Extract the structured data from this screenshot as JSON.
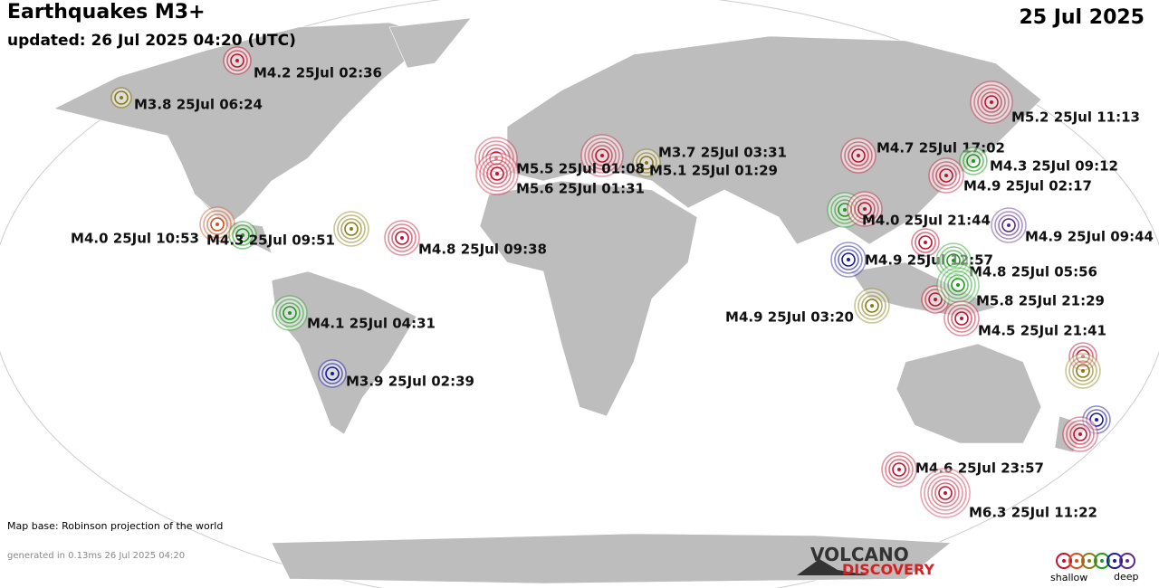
{
  "header": {
    "title": "Earthquakes M3+",
    "updated": "updated: 26 Jul 2025 04:20 (UTC)",
    "date": "25 Jul 2025"
  },
  "quakes": [
    {
      "label": "M4.2 25Jul 02:36"
    },
    {
      "label": "M3.8 25Jul 06:24"
    },
    {
      "label": "M5.2 25Jul 11:13"
    },
    {
      "label": "M3.7 25Jul 03:31"
    },
    {
      "label": "M5.1 25Jul 01:29"
    },
    {
      "label": "M5.5 25Jul 01:08"
    },
    {
      "label": "M5.6 25Jul 01:31"
    },
    {
      "label": "M4.7 25Jul 17:02"
    },
    {
      "label": "M4.3 25Jul 09:12"
    },
    {
      "label": "M4.9 25Jul 02:17"
    },
    {
      "label": "M4.0 25Jul 10:53"
    },
    {
      "label": "M4.3 25Jul 09:51"
    },
    {
      "label": "M4.8 25Jul 09:38"
    },
    {
      "label": "M4.0 25Jul 21:44"
    },
    {
      "label": "M4.9 25Jul 09:44"
    },
    {
      "label": "M4.9 25Jul 12:57"
    },
    {
      "label": "M4.8 25Jul 05:56"
    },
    {
      "label": "M5.8 25Jul 21:29"
    },
    {
      "label": "M4.9 25Jul 03:20"
    },
    {
      "label": "M4.5 25Jul 21:41"
    },
    {
      "label": "M4.1 25Jul 04:31"
    },
    {
      "label": "M3.9 25Jul 02:39"
    },
    {
      "label": "M4.6 25Jul 23:57"
    },
    {
      "label": "M6.3 25Jul 11:22"
    }
  ],
  "footer": {
    "map_base": "Map base: Robinson projection of the world",
    "generated": "generated in 0.13ms 26 Jul 2025 04:20"
  },
  "logo": {
    "line1": "VOLCANO",
    "line2": "DISCOVERY"
  },
  "legend": {
    "shallow": "shallow",
    "deep": "deep"
  }
}
